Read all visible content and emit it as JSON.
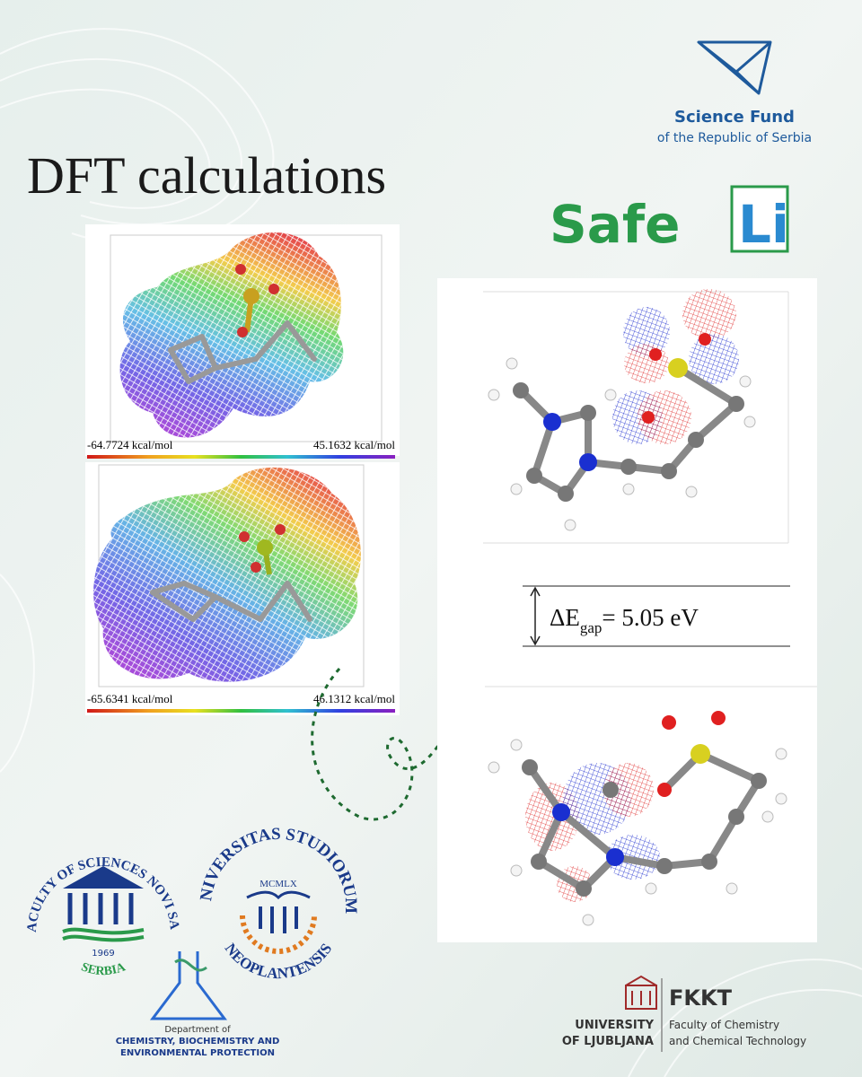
{
  "header": {
    "funder_name": "Science Fund",
    "funder_subtitle": "of the Republic of Serbia",
    "title": "DFT calculations",
    "project_logo_left": "Safe",
    "project_logo_right": "Li"
  },
  "esp_maps": [
    {
      "min_label": "-64.7724 kcal/mol",
      "max_label": "45.1632 kcal/mol"
    },
    {
      "min_label": "-65.6341 kcal/mol",
      "max_label": "46.1312 kcal/mol"
    }
  ],
  "orbital_panel": {
    "delta_symbol": "ΔE",
    "delta_subscript": "gap",
    "delta_value": "= 5.05 eV"
  },
  "logos": {
    "faculty_ring": "FACULTY OF SCIENCES NOVI SAD",
    "faculty_year": "1969",
    "faculty_country": "SERBIA",
    "university_top": "UNIVERSITAS STUDIORUM",
    "university_bottom": "NEOPLANTENSIS",
    "university_year": "MCMLX",
    "department_line1": "Department of",
    "department_line2": "CHEMISTRY, BIOCHEMISTRY AND",
    "department_line3": "ENVIRONMENTAL PROTECTION",
    "ljubljana_line1": "UNIVERSITY",
    "ljubljana_line2": "OF LJUBLJANA",
    "fkkt_abbr": "FKKT",
    "fkkt_line1": "Faculty of Chemistry",
    "fkkt_line2": "and Chemical Technology"
  }
}
